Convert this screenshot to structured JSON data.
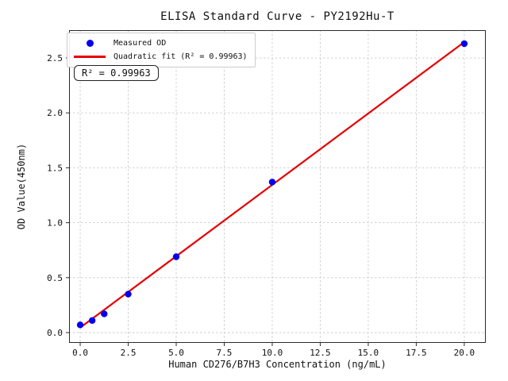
{
  "colors": {
    "point": "#0000ee",
    "fit_line": "#e50000",
    "grid": "#cbcbcb",
    "axis": "#2b2b2b",
    "text": "#111111",
    "legend_border": "#cccccc"
  },
  "chart_data": {
    "type": "scatter",
    "title": "ELISA Standard Curve - PY2192Hu-T",
    "xlabel": "Human CD276/B7H3 Concentration (ng/mL)",
    "ylabel": "OD Value(450nm)",
    "xlim": [
      -0.58,
      21.12
    ],
    "ylim": [
      -0.094,
      2.753
    ],
    "grid": true,
    "legend_position": "upper left",
    "xticks": [
      0,
      2.5,
      5,
      7.5,
      10,
      12.5,
      15,
      17.5,
      20
    ],
    "xtick_labels": [
      "0.0",
      "2.5",
      "5.0",
      "7.5",
      "10.0",
      "12.5",
      "15.0",
      "17.5",
      "20.0"
    ],
    "yticks": [
      0,
      0.5,
      1,
      1.5,
      2,
      2.5
    ],
    "ytick_labels": [
      "0.0",
      "0.5",
      "1.0",
      "1.5",
      "2.0",
      "2.5"
    ],
    "series": [
      {
        "name": "Measured OD",
        "kind": "scatter",
        "x": [
          0,
          0.625,
          1.25,
          2.5,
          5,
          10,
          20
        ],
        "y": [
          0.07,
          0.11,
          0.17,
          0.35,
          0.69,
          1.37,
          2.63
        ]
      },
      {
        "name": "Quadratic fit (R² = 0.99963)",
        "kind": "line",
        "x": [
          0,
          5,
          10,
          20
        ],
        "y": [
          0.045,
          0.695,
          1.345,
          2.645
        ]
      }
    ],
    "annotation": "R² = 0.99963",
    "r_squared": 0.99963
  }
}
